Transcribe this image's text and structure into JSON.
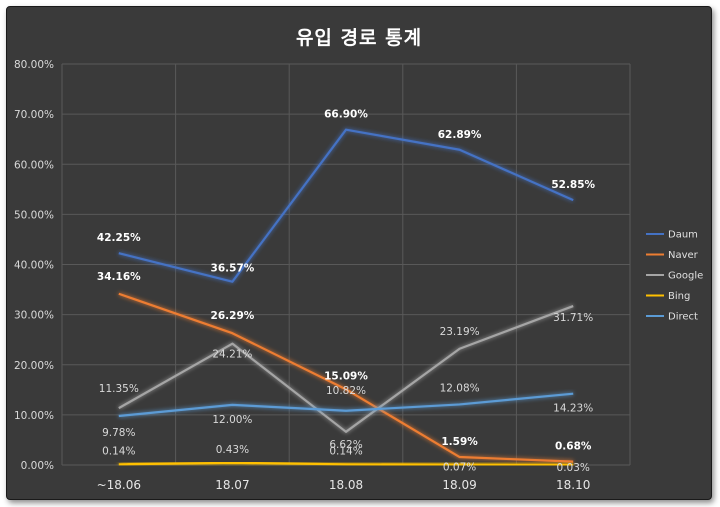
{
  "chart_data": {
    "type": "line",
    "title": "유입 경로 통계",
    "categories": [
      "~18.06",
      "18.07",
      "18.08",
      "18.09",
      "18.10"
    ],
    "ylim": [
      0,
      80
    ],
    "yticks": [
      "0.00%",
      "10.00%",
      "20.00%",
      "30.00%",
      "40.00%",
      "50.00%",
      "60.00%",
      "70.00%",
      "80.00%"
    ],
    "grid": true,
    "legend_position": "right",
    "series": [
      {
        "name": "Daum",
        "color": "#4472c4",
        "values": [
          42.25,
          36.57,
          66.9,
          62.89,
          52.85
        ],
        "labels": [
          "42.25%",
          "36.57%",
          "66.90%",
          "62.89%",
          "52.85%"
        ],
        "bold": true
      },
      {
        "name": "Naver",
        "color": "#ed7d31",
        "values": [
          34.16,
          26.29,
          15.09,
          1.59,
          0.68
        ],
        "labels": [
          "34.16%",
          "26.29%",
          "15.09%",
          "1.59%",
          "0.68%"
        ],
        "bold": true
      },
      {
        "name": "Google",
        "color": "#a5a5a5",
        "values": [
          11.35,
          24.21,
          6.62,
          23.19,
          31.71
        ],
        "labels": [
          "11.35%",
          "24.21%",
          "6.62%",
          "23.19%",
          "31.71%"
        ],
        "bold": false
      },
      {
        "name": "Bing",
        "color": "#ffc000",
        "values": [
          0.14,
          0.43,
          0.14,
          0.07,
          0.03
        ],
        "labels": [
          "0.14%",
          "0.43%",
          "0.14%",
          "0.07%",
          "0.03%"
        ],
        "bold": false
      },
      {
        "name": "Direct",
        "color": "#5b9bd5",
        "values": [
          9.78,
          12.0,
          10.82,
          12.08,
          14.23
        ],
        "labels": [
          "9.78%",
          "12.00%",
          "10.82%",
          "12.08%",
          "14.23%"
        ],
        "bold": false
      }
    ]
  }
}
